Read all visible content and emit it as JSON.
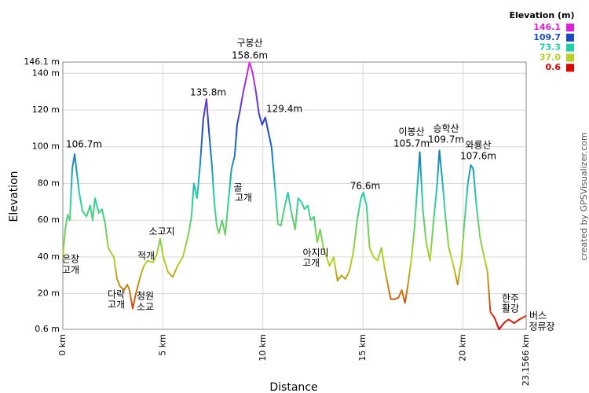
{
  "chart_data": {
    "type": "line",
    "xlabel": "Distance",
    "ylabel": "Elevation",
    "credit": "created by GPSVisualizer.com",
    "legend": {
      "title": "Elevation (m)",
      "entries": [
        {
          "value": 146.1,
          "label": "146.1",
          "color": "#e020e0"
        },
        {
          "value": 109.7,
          "label": "109.7",
          "color": "#1848c8"
        },
        {
          "value": 73.3,
          "label": "73.3",
          "color": "#20d0a8"
        },
        {
          "value": 37,
          "label": "37.0",
          "color": "#b8d020"
        },
        {
          "value": 0.6,
          "label": "0.6",
          "color": "#e00000"
        }
      ]
    },
    "grid": true,
    "xlim": [
      0,
      23.1566
    ],
    "ylim": [
      0.6,
      146.1
    ],
    "xticks": [
      {
        "value": 0,
        "label": "0 km"
      },
      {
        "value": 5,
        "label": "5 km"
      },
      {
        "value": 10,
        "label": "10 km"
      },
      {
        "value": 15,
        "label": "15 km"
      },
      {
        "value": 20,
        "label": "20 km"
      },
      {
        "value": 23.1566,
        "label": "23.1566 km"
      }
    ],
    "yticks": [
      {
        "value": 0.6,
        "label": "0.6 m"
      },
      {
        "value": 20,
        "label": "20 m"
      },
      {
        "value": 40,
        "label": "40 m"
      },
      {
        "value": 60,
        "label": "60 m"
      },
      {
        "value": 80,
        "label": "80 m"
      },
      {
        "value": 100,
        "label": "100 m"
      },
      {
        "value": 120,
        "label": "120 m"
      },
      {
        "value": 140,
        "label": "140 m"
      },
      {
        "value": 146.1,
        "label": "146.1 m"
      }
    ],
    "annotations": [
      "106.7m",
      "135.8m",
      "구봉산",
      "158.6m",
      "129.4m",
      "76.6m",
      "이봉산",
      "105.7m",
      "승학산",
      "109.7m",
      "와룡산",
      "107.6m",
      "골",
      "고개",
      "소고지",
      "적개",
      "아지미",
      "고개",
      "은장",
      "고개",
      "다락",
      "고개",
      "청원",
      "소교",
      "한주",
      "활강",
      "버스",
      "정류장"
    ],
    "series": [
      {
        "x": [
          0,
          0.12,
          0.24,
          0.35,
          0.47,
          0.59,
          0.71,
          0.82,
          0.98,
          1.18,
          1.37,
          1.49,
          1.61,
          1.8,
          1.96,
          2.12,
          2.27,
          2.43,
          2.55,
          2.71,
          2.86,
          3.06,
          3.22,
          3.33,
          3.49,
          3.65,
          3.84,
          4.04,
          4.24,
          4.51,
          4.71,
          4.86,
          5.02,
          5.25,
          5.49,
          5.73,
          6.0,
          6.27,
          6.43,
          6.55,
          6.71,
          6.86,
          7.02,
          7.18,
          7.29,
          7.45,
          7.57,
          7.69,
          7.8,
          7.96,
          8.12,
          8.27,
          8.43,
          8.59,
          8.71,
          8.86,
          9.02,
          9.18,
          9.33,
          9.49,
          9.65,
          9.8,
          9.96,
          10.12,
          10.27,
          10.43,
          10.59,
          10.75,
          10.9,
          11.1,
          11.25,
          11.41,
          11.61,
          11.76,
          11.92,
          12.08,
          12.24,
          12.39,
          12.55,
          12.71,
          12.86,
          13.02,
          13.18,
          13.33,
          13.53,
          13.73,
          13.92,
          14.12,
          14.31,
          14.51,
          14.71,
          14.9,
          15.02,
          15.18,
          15.33,
          15.53,
          15.73,
          15.92,
          16.08,
          16.24,
          16.39,
          16.59,
          16.78,
          16.94,
          17.1,
          17.25,
          17.41,
          17.57,
          17.73,
          17.84,
          18.0,
          18.16,
          18.35,
          18.55,
          18.71,
          18.82,
          18.98,
          19.14,
          19.29,
          19.53,
          19.73,
          19.92,
          20.08,
          20.24,
          20.39,
          20.51,
          20.67,
          20.86,
          21.06,
          21.22,
          21.37,
          21.57,
          21.8,
          22.04,
          22.27,
          22.55,
          22.82,
          23.1566
        ],
        "values": [
          40,
          55,
          63,
          60,
          88,
          96,
          85,
          75,
          65,
          62,
          68,
          60,
          72,
          64,
          66,
          58,
          45,
          42,
          40,
          28,
          24,
          22,
          25,
          22,
          12,
          20,
          28,
          35,
          38,
          37,
          42,
          50,
          40,
          32,
          29,
          35,
          40,
          52,
          62,
          80,
          72,
          90,
          115,
          126,
          110,
          90,
          70,
          57,
          53,
          60,
          52,
          70,
          88,
          95,
          112,
          120,
          130,
          138,
          146,
          140,
          130,
          118,
          112,
          116,
          108,
          100,
          80,
          58,
          57,
          68,
          75,
          65,
          55,
          72,
          70,
          66,
          68,
          60,
          62,
          48,
          55,
          45,
          40,
          35,
          40,
          27,
          30,
          28,
          32,
          42,
          60,
          72,
          75,
          68,
          45,
          40,
          38,
          45,
          34,
          25,
          17,
          17,
          18,
          22,
          15,
          25,
          38,
          55,
          80,
          97,
          65,
          48,
          38,
          62,
          80,
          98,
          80,
          60,
          45,
          35,
          25,
          38,
          60,
          80,
          90,
          88,
          68,
          50,
          40,
          32,
          10,
          7,
          0.6,
          4,
          6,
          4,
          6,
          8
        ]
      }
    ]
  }
}
